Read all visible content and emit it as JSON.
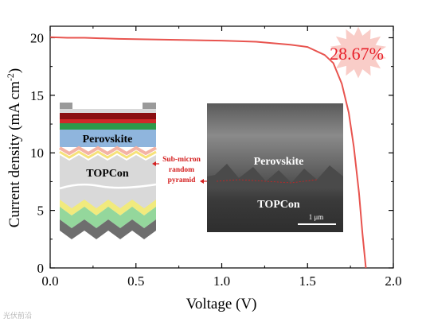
{
  "chart_data": {
    "type": "line",
    "xlabel": "Voltage (V)",
    "ylabel_main": "Current density (mA cm",
    "ylabel_sup": "-2",
    "ylabel_close": ")",
    "xlim": [
      0.0,
      2.0
    ],
    "ylim": [
      0,
      21
    ],
    "xticks": [
      0.0,
      0.5,
      1.0,
      1.5,
      2.0
    ],
    "xtick_labels": [
      "0.0",
      "0.5",
      "1.0",
      "1.5",
      "2.0"
    ],
    "yticks": [
      0,
      5,
      10,
      15,
      20
    ],
    "ytick_labels": [
      "0",
      "5",
      "10",
      "15",
      "20"
    ],
    "grid": false,
    "series": [
      {
        "color": "#e8544f",
        "x": [
          0.0,
          0.1,
          0.2,
          0.4,
          0.6,
          0.8,
          1.0,
          1.2,
          1.4,
          1.5,
          1.6,
          1.65,
          1.7,
          1.74,
          1.77,
          1.8,
          1.82,
          1.84
        ],
        "y": [
          20.05,
          20.0,
          20.0,
          19.9,
          19.85,
          19.8,
          19.75,
          19.65,
          19.4,
          19.2,
          18.5,
          17.8,
          16.0,
          13.5,
          10.5,
          6.5,
          3.0,
          0.0
        ]
      }
    ],
    "annotation": {
      "text": "28.67%",
      "color": "#e8202a",
      "badge_color": "#f9cdc8"
    }
  },
  "inset": {
    "layer_label_top": "Perovskite",
    "layer_label_bottom": "TOPCon",
    "arrow_label_lines": [
      "Sub-micron",
      "random",
      "pyramid"
    ],
    "arrow_color": "#d42020",
    "sem_label_top": "Perovskite",
    "sem_label_bottom": "TOPCon",
    "scale_bar_label": "1 μm"
  },
  "watermark": "光伏前沿"
}
